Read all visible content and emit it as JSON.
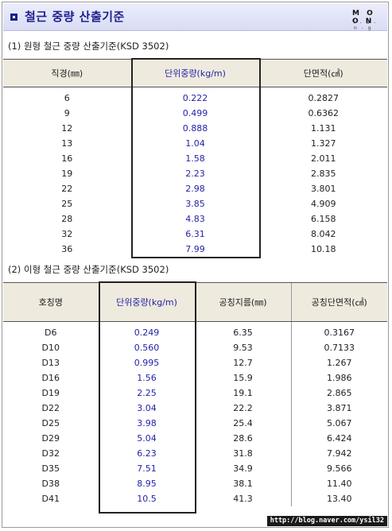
{
  "title": "철근 중량 산출기준",
  "logo": {
    "top": "M O O N",
    "bottom": "i - a - n - g"
  },
  "section1": {
    "title": "(1) 원형 철근 중량 산출기준(KSD 3502)",
    "headers": [
      "직경(㎜)",
      "단위중량(kg/m)",
      "단면적(㎠)"
    ],
    "rows": [
      [
        "6",
        "0.222",
        "0.2827"
      ],
      [
        "9",
        "0.499",
        "0.6362"
      ],
      [
        "12",
        "0.888",
        "1.131"
      ],
      [
        "13",
        "1.04",
        "1.327"
      ],
      [
        "16",
        "1.58",
        "2.011"
      ],
      [
        "19",
        "2.23",
        "2.835"
      ],
      [
        "22",
        "2.98",
        "3.801"
      ],
      [
        "25",
        "3.85",
        "4.909"
      ],
      [
        "28",
        "4.83",
        "6.158"
      ],
      [
        "32",
        "6.31",
        "8.042"
      ],
      [
        "36",
        "7.99",
        "10.18"
      ]
    ]
  },
  "section2": {
    "title": "(2) 이형 철근 중량 산출기준(KSD 3502)",
    "headers": [
      "호칭명",
      "단위중량(kg/m)",
      "공칭지름(㎜)",
      "공칭단면적(㎠)"
    ],
    "rows": [
      [
        "D6",
        "0.249",
        "6.35",
        "0.3167"
      ],
      [
        "D10",
        "0.560",
        "9.53",
        "0.7133"
      ],
      [
        "D13",
        "0.995",
        "12.7",
        "1.267"
      ],
      [
        "D16",
        "1.56",
        "15.9",
        "1.986"
      ],
      [
        "D19",
        "2.25",
        "19.1",
        "2.865"
      ],
      [
        "D22",
        "3.04",
        "22.2",
        "3.871"
      ],
      [
        "D25",
        "3.98",
        "25.4",
        "5.067"
      ],
      [
        "D29",
        "5.04",
        "28.6",
        "6.424"
      ],
      [
        "D32",
        "6.23",
        "31.8",
        "7.942"
      ],
      [
        "D35",
        "7.51",
        "34.9",
        "9.566"
      ],
      [
        "D38",
        "8.95",
        "38.1",
        "11.40"
      ],
      [
        "D41",
        "10.5",
        "41.3",
        "13.40"
      ]
    ]
  },
  "url": "http://blog.naver.com/ysil32",
  "colors": {
    "title": "#1c1f8c",
    "highlight": "#2323a8",
    "header_bg": "#eeeade"
  }
}
